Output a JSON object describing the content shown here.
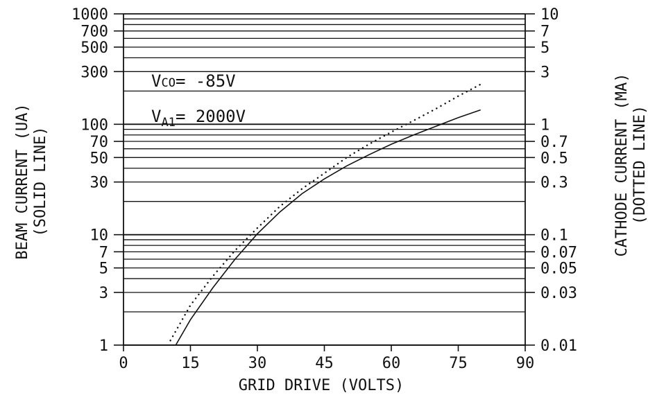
{
  "chart_data": {
    "type": "line",
    "title": "",
    "xlabel": "GRID DRIVE (VOLTS)",
    "x_ticks": [
      "0",
      "15",
      "30",
      "45",
      "60",
      "75",
      "90"
    ],
    "xlim": [
      0,
      90
    ],
    "left_axis": {
      "label_line1": "BEAM CURRENT (UA)",
      "label_line2": "(SOLID LINE)",
      "scale": "log",
      "ylim": [
        1,
        1000
      ],
      "tick_values": [
        1,
        3,
        5,
        7,
        10,
        30,
        50,
        70,
        100,
        300,
        500,
        700,
        1000
      ],
      "tick_labels": [
        "1",
        "3",
        "5",
        "7",
        "10",
        "30",
        "50",
        "70",
        "100",
        "300",
        "500",
        "700",
        "1000"
      ]
    },
    "right_axis": {
      "label_line1": "CATHODE CURRENT (MA)",
      "label_line2": "(DOTTED LINE)",
      "scale": "log",
      "ylim": [
        0.01,
        10
      ],
      "tick_values": [
        0.01,
        0.03,
        0.05,
        0.07,
        0.1,
        0.3,
        0.5,
        0.7,
        1,
        3,
        5,
        7,
        10
      ],
      "tick_labels": [
        "0.01",
        "0.03",
        "0.05",
        "0.07",
        "0.1",
        "0.3",
        "0.5",
        "0.7",
        "1",
        "3",
        "5",
        "7",
        "10"
      ]
    },
    "grid": "horizontal lines at each log decade subdivision",
    "annotations": [
      {
        "main": "V",
        "sub": "CO",
        "rest": "= -85V"
      },
      {
        "main": "V",
        "sub": "A1",
        "rest": "= 2000V"
      }
    ],
    "series": [
      {
        "name": "BEAM CURRENT",
        "axis": "left",
        "style": "solid",
        "x": [
          11.7,
          15,
          20,
          25,
          30,
          35,
          40,
          45,
          50,
          55,
          60,
          65,
          70,
          75,
          80
        ],
        "y": [
          1.0,
          1.7,
          3.3,
          6.0,
          10.2,
          16.0,
          23.5,
          32.0,
          42.0,
          53.0,
          66.0,
          80.0,
          96.0,
          115.0,
          135.0
        ]
      },
      {
        "name": "CATHODE CURRENT",
        "axis": "right",
        "style": "dotted",
        "x": [
          10.5,
          15,
          20,
          25,
          30,
          35,
          40,
          45,
          50,
          55,
          60,
          65,
          70,
          75,
          80
        ],
        "y": [
          0.011,
          0.023,
          0.042,
          0.072,
          0.115,
          0.18,
          0.26,
          0.36,
          0.5,
          0.66,
          0.85,
          1.08,
          1.38,
          1.8,
          2.3
        ]
      }
    ]
  }
}
